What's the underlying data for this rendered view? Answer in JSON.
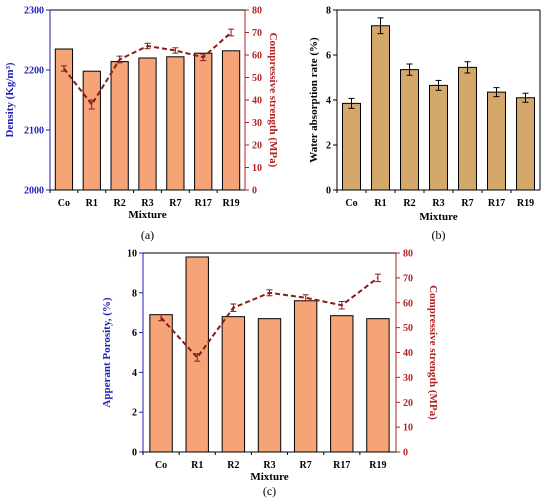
{
  "colors": {
    "bar_orange": "#F4A477",
    "bar_tan": "#D4A86A",
    "left_axis_blue": "#1F1FB5",
    "right_axis_red": "#B22222",
    "line_dark_red": "#8B1A1A",
    "axis_black": "#000000"
  },
  "chart_data": [
    {
      "panel_label": "(a)",
      "type": "bar",
      "categories": [
        "Co",
        "R1",
        "R2",
        "R3",
        "R7",
        "R17",
        "R19"
      ],
      "xlabel": "Mixture",
      "ylabel": "Density  (Kg/m³)",
      "ylim": [
        2000,
        2300
      ],
      "yticks": [
        "2000",
        "2100",
        "2200",
        "2300"
      ],
      "values": [
        2235,
        2198,
        2214,
        2220,
        2222,
        2228,
        2232
      ],
      "secondary": {
        "type": "line",
        "ylabel": "Compressive strength (MPa)",
        "ylim": [
          0,
          80
        ],
        "yticks": [
          "0",
          "10",
          "20",
          "30",
          "40",
          "50",
          "60",
          "70",
          "80"
        ],
        "values": [
          54,
          38,
          58,
          64,
          62,
          59,
          70
        ],
        "errors": [
          1.2,
          2.0,
          1.5,
          1.2,
          1.2,
          1.5,
          1.5
        ]
      }
    },
    {
      "panel_label": "(b)",
      "type": "bar",
      "categories": [
        "Co",
        "R1",
        "R2",
        "R3",
        "R7",
        "R17",
        "R19"
      ],
      "xlabel": "Mixture",
      "ylabel": "Water absorption rate (%)",
      "ylim": [
        0,
        8
      ],
      "yticks": [
        "0",
        "2",
        "4",
        "6",
        "8"
      ],
      "values": [
        3.85,
        7.3,
        5.35,
        4.65,
        5.45,
        4.35,
        4.1
      ],
      "errors": [
        0.22,
        0.35,
        0.25,
        0.22,
        0.25,
        0.2,
        0.2
      ]
    },
    {
      "panel_label": "(c)",
      "type": "bar",
      "categories": [
        "Co",
        "R1",
        "R2",
        "R3",
        "R7",
        "R17",
        "R19"
      ],
      "xlabel": "Mixture",
      "ylabel": "Apperant Porosity,  (%)",
      "ylim": [
        0,
        10
      ],
      "yticks": [
        "0",
        "2",
        "4",
        "6",
        "8",
        "10"
      ],
      "values": [
        6.9,
        9.8,
        6.8,
        6.7,
        7.6,
        6.85,
        6.7
      ],
      "secondary": {
        "type": "line",
        "ylabel": "Compressive strength (MPa)",
        "ylim": [
          0,
          80
        ],
        "yticks": [
          "0",
          "10",
          "20",
          "30",
          "40",
          "50",
          "60",
          "70",
          "80"
        ],
        "values": [
          54,
          38,
          58,
          64,
          62,
          59,
          70
        ],
        "errors": [
          1.2,
          1.5,
          1.5,
          1.2,
          1.2,
          1.5,
          1.5
        ]
      }
    }
  ]
}
